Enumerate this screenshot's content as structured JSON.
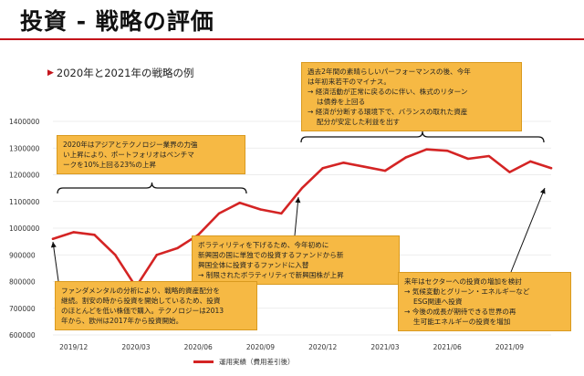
{
  "page": {
    "title": "投資 ‐ 戦略の評価",
    "subtitle": "2020年と2021年の戦略の例",
    "accent_color": "#c4141b"
  },
  "chart_data": {
    "type": "line",
    "x_ticks": [
      "2019/12",
      "2020/03",
      "2020/06",
      "2020/09",
      "2020/12",
      "2021/03",
      "2021/06",
      "2021/09"
    ],
    "y_ticks": [
      "600000",
      "700000",
      "800000",
      "900000",
      "1000000",
      "1100000",
      "1200000",
      "1300000",
      "1400000"
    ],
    "ylim": [
      600000,
      1400000
    ],
    "series": [
      {
        "name": "運用実績（費用差引後）",
        "color": "#d42424",
        "x": [
          "2019/11",
          "2019/12",
          "2020/01",
          "2020/02",
          "2020/03",
          "2020/04",
          "2020/05",
          "2020/06",
          "2020/07",
          "2020/08",
          "2020/09",
          "2020/10",
          "2020/11",
          "2020/12",
          "2021/01",
          "2021/02",
          "2021/03",
          "2021/04",
          "2021/05",
          "2021/06",
          "2021/07",
          "2021/08",
          "2021/09",
          "2021/10",
          "2021/11"
        ],
        "values": [
          960000,
          985000,
          975000,
          900000,
          780000,
          900000,
          925000,
          975000,
          1055000,
          1095000,
          1070000,
          1055000,
          1150000,
          1225000,
          1245000,
          1230000,
          1215000,
          1265000,
          1295000,
          1290000,
          1260000,
          1270000,
          1210000,
          1250000,
          1225000
        ]
      }
    ]
  },
  "annotations": [
    {
      "lines": [
        "2020年はアジアとテクノロジー業界の力強",
        "い上昇により、ポートフォリオはベンチマ",
        "ークを10%上回る23%の上昇"
      ]
    },
    {
      "lines": [
        "過去2年間の素晴らしいパーフォーマンスの後、今年",
        "は年初来若干のマイナス。",
        "→ 経済活動が正常に戻るのに伴い、株式のリターン",
        "　 は債券を上回る",
        "→ 経済が分断する環境下で、バランスの取れた資産",
        "　 配分が安定した利益を出す"
      ]
    },
    {
      "lines": [
        "ボラティリティを下げるため、今年初めに",
        "新興国の国に単独での投資するファンドから新",
        "興国全体に投資するファンドに入替",
        "→ 制限されたボラティリティで新興国株が上昇"
      ]
    },
    {
      "lines": [
        "ファンダメンタルの分析により、戦略的資産配分を",
        "継続。割安の時から投資を開始しているため、投資",
        "のほとんどを低い株価で購入。テクノロジーは2013",
        "年から、欧州は2017年から投資開始。"
      ]
    },
    {
      "lines": [
        "来年はセクターへの投資の増加を検討",
        "→ 気候変動とグリーン・エネルギーなど",
        "　 ESG関連へ投資",
        "→ 今後の成長が期待できる世界の再",
        "　 生可能エネルギーの投資を増加"
      ]
    }
  ]
}
